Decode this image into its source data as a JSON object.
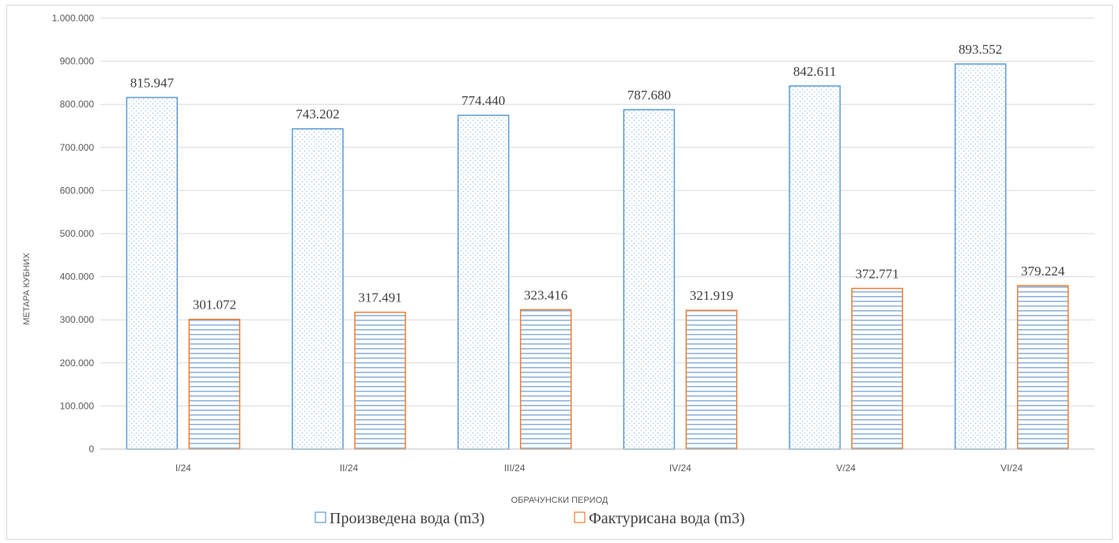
{
  "chart_data": {
    "type": "bar",
    "categories": [
      "I/24",
      "II/24",
      "III/24",
      "IV/24",
      "V/24",
      "VI/24"
    ],
    "series": [
      {
        "name": "Произведена вода (m3)",
        "values": [
          815947,
          743202,
          774440,
          787680,
          842611,
          893552
        ],
        "labels": [
          "815.947",
          "743.202",
          "774.440",
          "787.680",
          "842.611",
          "893.552"
        ],
        "color": "#5b9bd5",
        "pattern": "dots"
      },
      {
        "name": "Фактурисана вода  (m3)",
        "values": [
          301072,
          317491,
          323416,
          321919,
          372771,
          379224
        ],
        "labels": [
          "301.072",
          "317.491",
          "323.416",
          "321.919",
          "372.771",
          "379.224"
        ],
        "color": "#ed7d31",
        "pattern": "horizontal-lines"
      }
    ],
    "xlabel": "ОБРАЧУНСКИ ПЕРИОД",
    "ylabel": "МЕТАРА КУБНИХ",
    "ylim": [
      0,
      1000000
    ],
    "yticks": [
      0,
      100000,
      200000,
      300000,
      400000,
      500000,
      600000,
      700000,
      800000,
      900000,
      1000000
    ],
    "ytick_labels": [
      "0",
      "100.000",
      "200.000",
      "300.000",
      "400.000",
      "500.000",
      "600.000",
      "700.000",
      "800.000",
      "900.000",
      "1.000.000"
    ],
    "grid": true,
    "legend_position": "bottom"
  }
}
